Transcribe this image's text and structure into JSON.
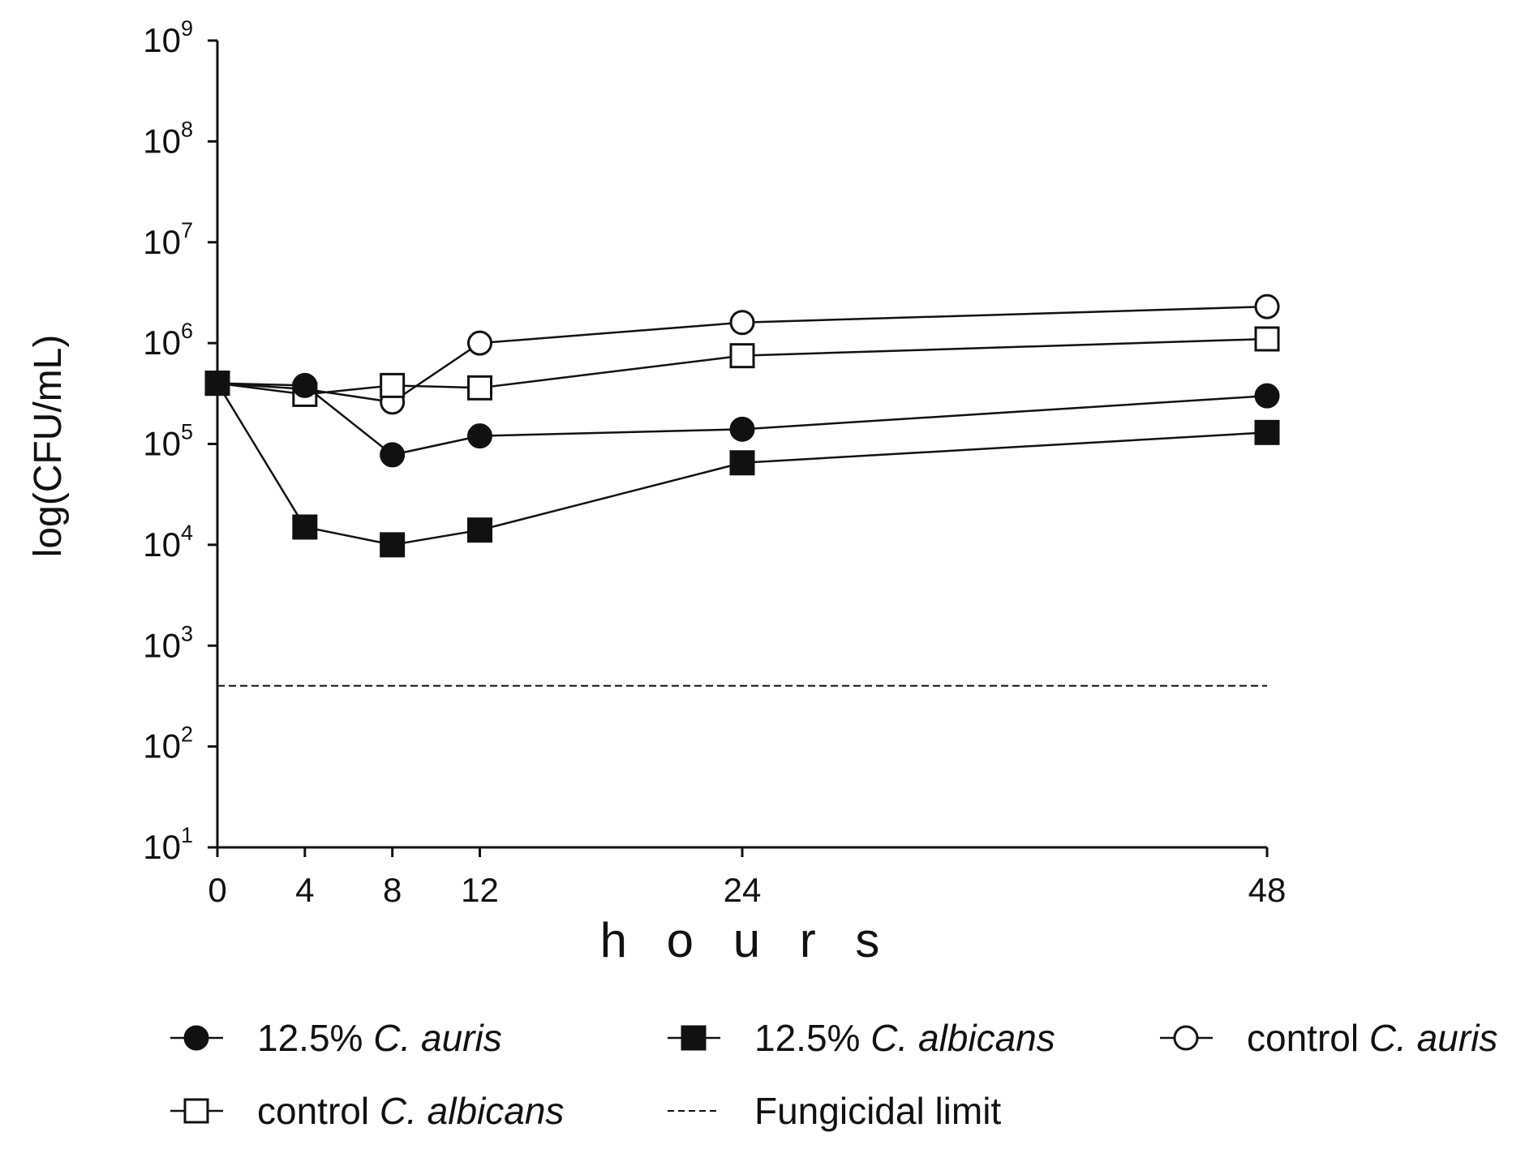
{
  "chart_data": {
    "type": "line",
    "y_scale": "log",
    "xlabel": "h o u r s",
    "ylabel": "log(CFU/mL)",
    "x": [
      0,
      4,
      8,
      12,
      24,
      48
    ],
    "x_tick_labels": [
      "0",
      "4",
      "8",
      "12",
      "24",
      "48"
    ],
    "xlim": [
      0,
      48
    ],
    "ylim": [
      10,
      1000000000
    ],
    "y_ticks": [
      {
        "base": "10",
        "exp": "1",
        "value": 10
      },
      {
        "base": "10",
        "exp": "2",
        "value": 100
      },
      {
        "base": "10",
        "exp": "3",
        "value": 1000
      },
      {
        "base": "10",
        "exp": "4",
        "value": 10000
      },
      {
        "base": "10",
        "exp": "5",
        "value": 100000
      },
      {
        "base": "10",
        "exp": "6",
        "value": 1000000
      },
      {
        "base": "10",
        "exp": "7",
        "value": 10000000
      },
      {
        "base": "10",
        "exp": "8",
        "value": 100000000
      },
      {
        "base": "10",
        "exp": "9",
        "value": 1000000000
      }
    ],
    "series": [
      {
        "name": "control C. auris",
        "prefix": "control",
        "species": "C. auris",
        "marker": "open-circle",
        "values": [
          400000,
          350000,
          260000,
          1000000,
          1600000,
          2300000
        ]
      },
      {
        "name": "control C. albicans",
        "prefix": "control",
        "species": "C. albicans",
        "marker": "open-square",
        "values": [
          400000,
          310000,
          380000,
          360000,
          750000,
          1100000
        ]
      },
      {
        "name": "12.5% C. auris",
        "prefix": "12.5%",
        "species": "C. auris",
        "marker": "filled-circle",
        "values": [
          400000,
          380000,
          78000,
          120000,
          140000,
          300000
        ]
      },
      {
        "name": "12.5% C. albicans",
        "prefix": "12.5%",
        "species": "C. albicans",
        "marker": "filled-square",
        "values": [
          400000,
          15000,
          10000,
          14000,
          65000,
          130000
        ]
      }
    ],
    "reference_line": {
      "name": "Fungicidal limit",
      "value": 400,
      "style": "dashed"
    },
    "legend": {
      "placement": "bottom",
      "entries": [
        {
          "series": "12.5% C. auris",
          "prefix": "12.5%",
          "species": "C. auris",
          "marker": "filled-circle"
        },
        {
          "series": "12.5% C. albicans",
          "prefix": "12.5%",
          "species": "C. albicans",
          "marker": "filled-square"
        },
        {
          "series": "control C. auris",
          "prefix": "control",
          "species": "C. auris",
          "marker": "open-circle"
        },
        {
          "series": "control C. albicans",
          "prefix": "control",
          "species": "C. albicans",
          "marker": "open-square"
        },
        {
          "series": "Fungicidal limit",
          "prefix": "Fungicidal limit",
          "species": "",
          "marker": "dashed-line"
        }
      ]
    },
    "colors": {
      "ink": "#111111",
      "background": "#ffffff"
    }
  }
}
